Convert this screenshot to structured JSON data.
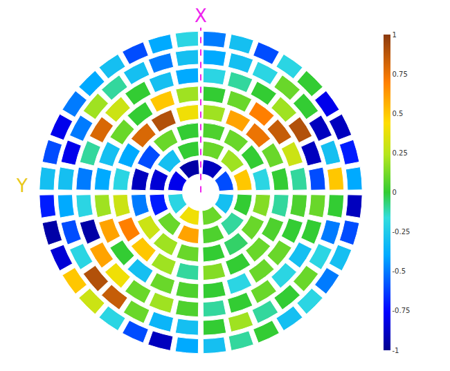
{
  "chart_data": {
    "type": "barpolar",
    "tick_labels": false,
    "rings": [
      {
        "values": [
          -0.9,
          -0.6,
          -0.3,
          0.1,
          0.4,
          -0.2,
          -0.8,
          -0.95
        ]
      },
      {
        "values": [
          0.1,
          0.2,
          0.5,
          0.0,
          -0.1,
          0.05,
          0.6,
          0.1,
          -0.7,
          -0.85,
          -0.3,
          0.0
        ]
      },
      {
        "values": [
          0.05,
          0.1,
          0.0,
          -0.2,
          0.15,
          0.1,
          -0.05,
          0.0,
          0.1,
          0.2,
          0.3,
          -0.5,
          -0.9,
          -0.6,
          0.1,
          0.0
        ]
      },
      {
        "values": [
          0.2,
          0.6,
          0.75,
          0.1,
          0.0,
          -0.1,
          0.05,
          0.1,
          0.0,
          0.15,
          -0.1,
          0.2,
          0.5,
          0.7,
          0.3,
          -0.2,
          -0.4,
          0.8,
          0.9,
          0.4
        ]
      },
      {
        "values": [
          0.0,
          0.1,
          0.7,
          0.85,
          0.3,
          -0.1,
          0.05,
          0.0,
          0.1,
          0.1,
          -0.2,
          0.0,
          0.05,
          0.1,
          -0.3,
          0.0,
          0.6,
          0.2,
          -0.4,
          -0.3,
          0.1,
          0.0,
          0.5,
          0.2
        ]
      },
      {
        "values": [
          -0.2,
          -0.1,
          0.0,
          0.2,
          0.9,
          -0.9,
          -0.6,
          0.1,
          0.0,
          -0.3,
          -0.2,
          0.1,
          0.0,
          -0.1,
          0.05,
          0.2,
          0.1,
          0.4,
          0.6,
          -0.95,
          -0.2,
          -0.5,
          -0.1,
          0.8,
          0.3,
          0.0,
          -0.3,
          -0.4
        ]
      },
      {
        "values": [
          -0.4,
          -0.3,
          -0.2,
          0.1,
          0.0,
          -0.9,
          -0.3,
          0.5,
          0.0,
          -0.5,
          -0.2,
          0.1,
          0.0,
          -0.1,
          0.2,
          0.0,
          -0.3,
          -0.35,
          0.1,
          0.85,
          0.9,
          -0.2,
          -0.6,
          -0.4,
          -0.3,
          -0.8,
          -0.5,
          0.2,
          -0.1,
          -0.3,
          -0.5,
          -0.3
        ]
      },
      {
        "values": [
          -0.5,
          -0.3,
          -0.6,
          -0.2,
          0.0,
          -0.8,
          -0.9,
          -0.7,
          -0.4,
          -0.9,
          -0.6,
          -0.3,
          -0.5,
          -0.2,
          -0.3,
          0.0,
          -0.1,
          -0.3,
          -0.4,
          -0.9,
          -0.6,
          -0.2,
          0.3,
          0.5,
          -0.85,
          -0.95,
          -0.7,
          -0.3,
          -0.6,
          -0.8,
          -0.5,
          -0.4,
          -0.3,
          -0.6,
          -0.4,
          -0.2
        ]
      }
    ],
    "colorbar": {
      "range": [
        -1,
        1
      ],
      "ticks": [
        -1,
        -0.75,
        -0.5,
        -0.25,
        0,
        0.25,
        0.5,
        0.75,
        1
      ]
    },
    "annotations": [
      {
        "text": "X",
        "color": "#ee22ee"
      },
      {
        "text": "Y",
        "color": "#e8c81a"
      }
    ]
  }
}
